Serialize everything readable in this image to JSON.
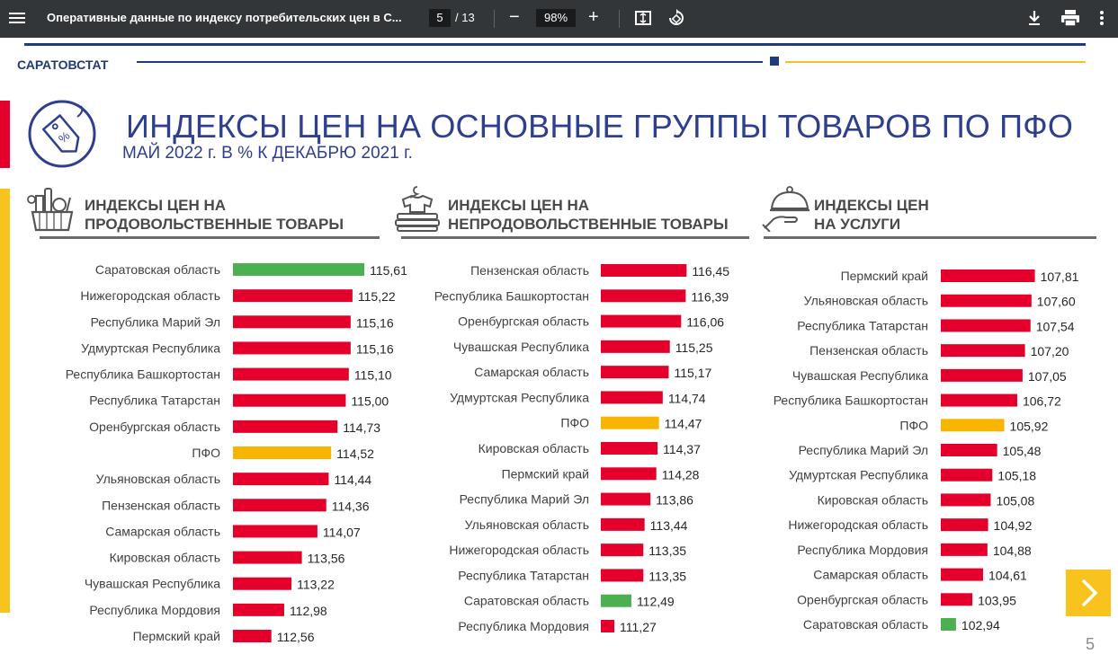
{
  "toolbar": {
    "doc_title": "Оперативные данные по индексу потребительских цен в С...",
    "page_current": "5",
    "page_total": "/ 13",
    "zoom": "98%",
    "icons": [
      "menu-icon",
      "zoom-out-icon",
      "zoom-in-icon",
      "fit-page-icon",
      "rotate-icon",
      "download-icon",
      "print-icon",
      "more-icon"
    ]
  },
  "header": {
    "org": "САРАТОВСТАТ",
    "title": "ИНДЕКСЫ ЦЕН НА ОСНОВНЫЕ ГРУППЫ ТОВАРОВ ПО ПФО",
    "subtitle": "МАЙ 2022 г. В % К ДЕКАБРЮ 2021 г."
  },
  "colors": {
    "default": "#e4002b",
    "saratov": "#4caf50",
    "pfo": "#f7b500",
    "brand": "#2e3f8f"
  },
  "chart_data": [
    {
      "type": "bar",
      "orientation": "horizontal",
      "title_line1": "ИНДЕКСЫ ЦЕН НА",
      "title_line2": "ПРОДОВОЛЬСТВЕННЫЕ ТОВАРЫ",
      "icon": "grocery-basket-icon",
      "categories": [
        "Саратовская область",
        "Нижегородская область",
        "Республика Марий Эл",
        "Удмуртская Республика",
        "Республика Башкортостан",
        "Республика Татарстан",
        "Оренбургская область",
        "ПФО",
        "Ульяновская область",
        "Пензенская область",
        "Самарская область",
        "Кировская область",
        "Чувашская Республика",
        "Республика Мордовия",
        "Пермский край"
      ],
      "values": [
        115.61,
        115.22,
        115.16,
        115.16,
        115.1,
        115.0,
        114.73,
        114.52,
        114.44,
        114.36,
        114.07,
        113.56,
        113.22,
        112.98,
        112.56
      ],
      "value_labels": [
        "115,61",
        "115,22",
        "115,16",
        "115,16",
        "115,10",
        "115,00",
        "114,73",
        "114,52",
        "114,44",
        "114,36",
        "114,07",
        "113,56",
        "113,22",
        "112,98",
        "112,56"
      ],
      "highlight": {
        "Саратовская область": "saratov",
        "ПФО": "pfo"
      }
    },
    {
      "type": "bar",
      "orientation": "horizontal",
      "title_line1": "ИНДЕКСЫ ЦЕН НА",
      "title_line2": "НЕПРОДОВОЛЬСТВЕННЫЕ ТОВАРЫ",
      "icon": "clothes-stack-icon",
      "categories": [
        "Пензенская область",
        "Республика Башкортостан",
        "Оренбургская область",
        "Чувашская Республика",
        "Самарская область",
        "Удмуртская Республика",
        "ПФО",
        "Кировская область",
        "Пермский край",
        "Республика Марий Эл",
        "Ульяновская область",
        "Нижегородская область",
        "Республика Татарстан",
        "Саратовская область",
        "Республика Мордовия"
      ],
      "values": [
        116.45,
        116.39,
        116.06,
        115.25,
        115.17,
        114.74,
        114.47,
        114.37,
        114.28,
        113.86,
        113.44,
        113.35,
        113.35,
        112.49,
        111.27
      ],
      "value_labels": [
        "116,45",
        "116,39",
        "116,06",
        "115,25",
        "115,17",
        "114,74",
        "114,47",
        "114,37",
        "114,28",
        "113,86",
        "113,44",
        "113,35",
        "113,35",
        "112,49",
        "111,27"
      ],
      "highlight": {
        "Саратовская область": "saratov",
        "ПФО": "pfo"
      }
    },
    {
      "type": "bar",
      "orientation": "horizontal",
      "title_line1": "ИНДЕКСЫ ЦЕН",
      "title_line2": "НА УСЛУГИ",
      "icon": "service-cloche-icon",
      "categories": [
        "Пермский край",
        "Ульяновская область",
        "Республика Татарстан",
        "Пензенская область",
        "Чувашская Республика",
        "Республика Башкортостан",
        "ПФО",
        "Республика Марий Эл",
        "Удмуртская Республика",
        "Кировская область",
        "Нижегородская область",
        "Республика Мордовия",
        "Самарская область",
        "Оренбургская область",
        "Саратовская область"
      ],
      "values": [
        107.81,
        107.6,
        107.54,
        107.2,
        107.05,
        106.72,
        105.92,
        105.48,
        105.18,
        105.08,
        104.92,
        104.88,
        104.61,
        103.95,
        102.94
      ],
      "value_labels": [
        "107,81",
        "107,60",
        "107,54",
        "107,20",
        "107,05",
        "106,72",
        "105,92",
        "105,48",
        "105,18",
        "105,08",
        "104,92",
        "104,88",
        "104,61",
        "103,95",
        "102,94"
      ],
      "highlight": {
        "Саратовская область": "saratov",
        "ПФО": "pfo"
      }
    }
  ],
  "footer": {
    "page_number": "5",
    "next_icon": "chevron-right-icon"
  }
}
